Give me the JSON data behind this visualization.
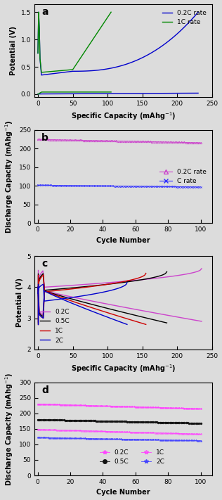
{
  "panel_a": {
    "title": "a",
    "xlabel": "Specific Capacity (mAhg$^{-1}$)",
    "ylabel": "Potential (V)",
    "xlim": [
      -5,
      250
    ],
    "ylim": [
      -0.05,
      1.65
    ],
    "yticks": [
      0.0,
      0.5,
      1.0,
      1.5
    ],
    "xticks": [
      0,
      50,
      100,
      150,
      200,
      250
    ]
  },
  "panel_b": {
    "title": "b",
    "xlabel": "Cycle Number",
    "ylabel": "Discharge Capacity (mAhg$^{-1}$)",
    "xlim": [
      -2,
      107
    ],
    "ylim": [
      0,
      250
    ],
    "yticks": [
      0,
      50,
      100,
      150,
      200,
      250
    ],
    "xticks": [
      0,
      20,
      40,
      60,
      80,
      100
    ]
  },
  "panel_c": {
    "title": "c",
    "xlabel": "Specific Capacity (mAhg$^{-1}$)",
    "ylabel": "Potential (V)",
    "xlim": [
      -5,
      250
    ],
    "ylim": [
      2.0,
      5.0
    ],
    "yticks": [
      2,
      3,
      4,
      5
    ],
    "xticks": [
      0,
      50,
      100,
      150,
      200,
      250
    ]
  },
  "panel_d": {
    "title": "d",
    "xlabel": "Cycle Number",
    "ylabel": "Discharge Capacity (mAhg$^{-1}$)",
    "xlim": [
      -2,
      107
    ],
    "ylim": [
      0,
      300
    ],
    "yticks": [
      0,
      50,
      100,
      150,
      200,
      250,
      300
    ],
    "xticks": [
      0,
      20,
      40,
      60,
      80,
      100
    ]
  },
  "background_color": "#dcdcdc"
}
